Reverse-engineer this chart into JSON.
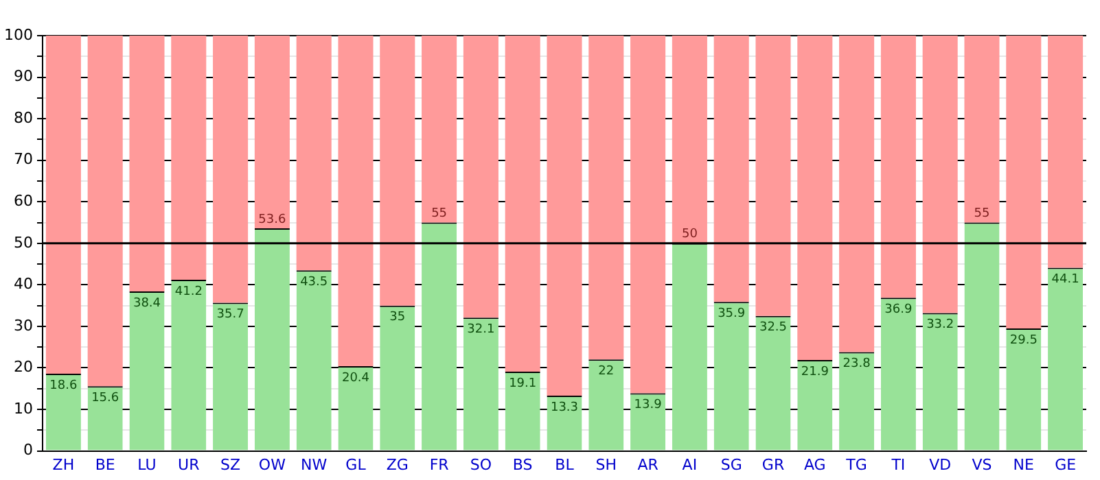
{
  "chart_data": {
    "type": "bar",
    "stacked": true,
    "categories": [
      "ZH",
      "BE",
      "LU",
      "UR",
      "SZ",
      "OW",
      "NW",
      "GL",
      "ZG",
      "FR",
      "SO",
      "BS",
      "BL",
      "SH",
      "AR",
      "AI",
      "SG",
      "GR",
      "AG",
      "TG",
      "TI",
      "VD",
      "VS",
      "NE",
      "GE"
    ],
    "series": [
      {
        "color": "#98e298",
        "values": [
          18.6,
          15.6,
          38.4,
          41.2,
          35.7,
          53.6,
          43.5,
          20.4,
          35,
          55,
          32.1,
          19.1,
          13.3,
          22,
          13.9,
          50,
          35.9,
          32.5,
          21.9,
          23.8,
          36.9,
          33.2,
          55,
          29.5,
          44.1
        ],
        "value_labels": [
          "18.6",
          "15.6",
          "38.4",
          "41.2",
          "35.7",
          "53.6",
          "43.5",
          "20.4",
          "35",
          "55",
          "32.1",
          "19.1",
          "13.3",
          "22",
          "13.9",
          "50",
          "35.9",
          "32.5",
          "21.9",
          "23.8",
          "36.9",
          "33.2",
          "55",
          "29.5",
          "44.1"
        ]
      },
      {
        "color": "#ff9a9a",
        "values": [
          81.4,
          84.4,
          61.6,
          58.8,
          64.3,
          46.4,
          56.5,
          79.6,
          65,
          45,
          67.9,
          80.9,
          86.7,
          78,
          86.1,
          50,
          64.1,
          67.5,
          78.1,
          76.2,
          63.1,
          66.8,
          45,
          70.5,
          55.9
        ]
      }
    ],
    "ylim": [
      0,
      100
    ],
    "yticks": [
      0,
      {
        "value": 5,
        "label": null
      },
      10,
      {
        "value": 15,
        "label": null
      },
      20,
      {
        "value": 25,
        "label": null
      },
      30,
      {
        "value": 35,
        "label": null
      },
      40,
      {
        "value": 45,
        "label": null
      },
      50,
      {
        "value": 55,
        "label": null
      },
      60,
      {
        "value": 65,
        "label": null
      },
      70,
      {
        "value": 75,
        "label": null
      },
      80,
      {
        "value": 85,
        "label": null
      },
      90,
      {
        "value": 95,
        "label": null
      },
      100
    ],
    "grid": true,
    "ref_lines": [
      {
        "axis": "y",
        "value": 50,
        "color": "#000000"
      }
    ]
  }
}
